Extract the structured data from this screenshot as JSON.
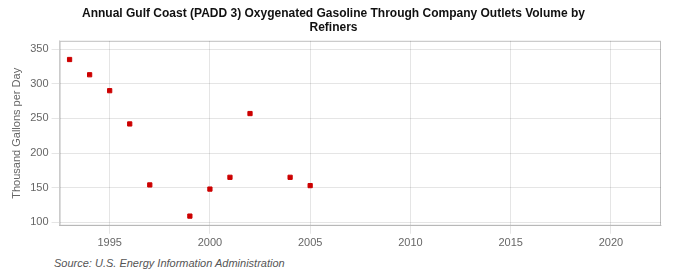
{
  "chart_data": {
    "type": "scatter",
    "title": "Annual Gulf Coast (PADD 3) Oxygenated Gasoline Through Company Outlets Volume by\nRefiners",
    "ylabel": "Thousand Gallons per Day",
    "annotation": "Source: U.S. Energy Information Administration",
    "x": [
      1993,
      1994,
      1995,
      1996,
      1997,
      1999,
      2000,
      2001,
      2002,
      2004,
      2005
    ],
    "values": [
      335,
      313,
      290,
      242,
      154,
      109,
      148,
      165,
      257,
      165,
      153
    ],
    "color": "#cc0000",
    "marker": "square",
    "xlim": [
      1992.5,
      2022.5
    ],
    "ylim": [
      95,
      362
    ],
    "xticks": [
      1995,
      2000,
      2005,
      2010,
      2015,
      2020
    ],
    "yticks": [
      100,
      150,
      200,
      250,
      300,
      350
    ],
    "grid": true
  }
}
